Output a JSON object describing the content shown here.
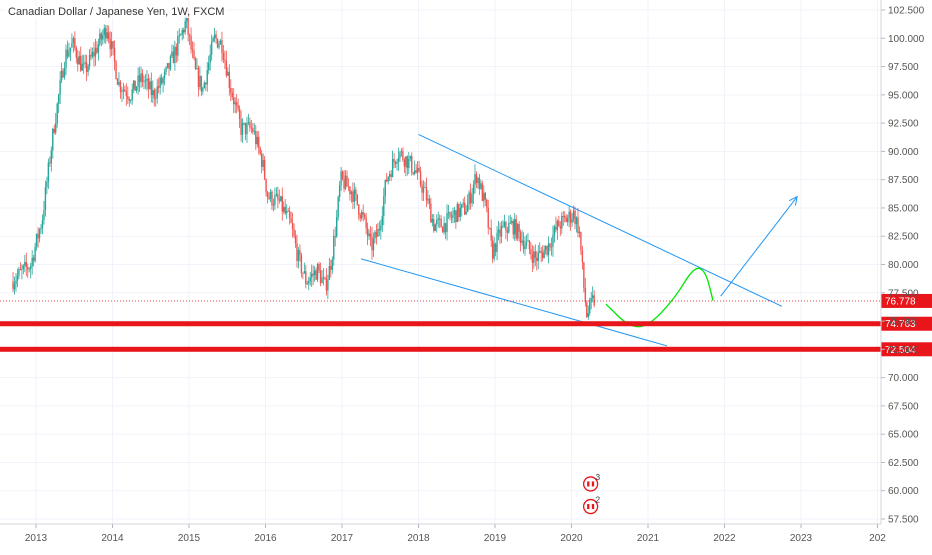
{
  "chart_data": {
    "type": "candlestick",
    "title": "Canadian Dollar / Japanese Yen, 1W, FXCM",
    "x_ticks": [
      "2013",
      "2014",
      "2015",
      "2016",
      "2017",
      "2018",
      "2019",
      "2020",
      "2021",
      "2022",
      "2023",
      "202"
    ],
    "y_ticks": [
      "102.500",
      "100.000",
      "97.500",
      "95.000",
      "92.500",
      "90.000",
      "87.500",
      "85.000",
      "82.500",
      "80.000",
      "77.500",
      "75.000",
      "72.500",
      "70.000",
      "67.500",
      "65.000",
      "62.500",
      "60.000",
      "57.500"
    ],
    "ylim": [
      57.5,
      102.5
    ],
    "xlim": [
      2012.7,
      2023.9
    ],
    "price_path": [
      [
        2012.7,
        78.5
      ],
      [
        2012.95,
        80.0
      ],
      [
        2013.1,
        84.0
      ],
      [
        2013.25,
        92.0
      ],
      [
        2013.4,
        98.5
      ],
      [
        2013.5,
        99.5
      ],
      [
        2013.65,
        97.0
      ],
      [
        2013.8,
        99.0
      ],
      [
        2013.95,
        101.0
      ],
      [
        2014.1,
        96.0
      ],
      [
        2014.25,
        95.0
      ],
      [
        2014.4,
        96.5
      ],
      [
        2014.55,
        95.0
      ],
      [
        2014.7,
        96.5
      ],
      [
        2014.85,
        99.0
      ],
      [
        2014.98,
        101.5
      ],
      [
        2015.1,
        97.0
      ],
      [
        2015.2,
        95.5
      ],
      [
        2015.35,
        100.0
      ],
      [
        2015.45,
        99.5
      ],
      [
        2015.55,
        96.0
      ],
      [
        2015.7,
        92.0
      ],
      [
        2015.85,
        92.0
      ],
      [
        2015.98,
        89.0
      ],
      [
        2016.05,
        86.0
      ],
      [
        2016.2,
        85.5
      ],
      [
        2016.35,
        83.5
      ],
      [
        2016.45,
        80.5
      ],
      [
        2016.55,
        78.5
      ],
      [
        2016.7,
        79.5
      ],
      [
        2016.8,
        78.0
      ],
      [
        2016.87,
        80.0
      ],
      [
        2016.95,
        84.0
      ],
      [
        2017.0,
        87.5
      ],
      [
        2017.15,
        86.5
      ],
      [
        2017.3,
        84.0
      ],
      [
        2017.4,
        81.5
      ],
      [
        2017.5,
        83.0
      ],
      [
        2017.6,
        87.5
      ],
      [
        2017.75,
        90.0
      ],
      [
        2017.9,
        89.0
      ],
      [
        2018.0,
        88.0
      ],
      [
        2018.12,
        86.0
      ],
      [
        2018.22,
        83.5
      ],
      [
        2018.35,
        83.5
      ],
      [
        2018.5,
        84.5
      ],
      [
        2018.65,
        85.0
      ],
      [
        2018.78,
        88.0
      ],
      [
        2018.9,
        85.0
      ],
      [
        2018.98,
        81.0
      ],
      [
        2019.1,
        83.0
      ],
      [
        2019.25,
        83.5
      ],
      [
        2019.4,
        82.0
      ],
      [
        2019.55,
        80.5
      ],
      [
        2019.7,
        81.5
      ],
      [
        2019.85,
        83.5
      ],
      [
        2019.95,
        84.0
      ],
      [
        2020.05,
        84.5
      ],
      [
        2020.12,
        83.0
      ],
      [
        2020.18,
        78.0
      ],
      [
        2020.22,
        75.5
      ],
      [
        2020.3,
        76.8
      ]
    ],
    "drawings": {
      "upper_trendline": [
        [
          2018.0,
          91.5
        ],
        [
          2022.75,
          76.3
        ]
      ],
      "lower_trendline": [
        [
          2017.25,
          80.5
        ],
        [
          2021.25,
          72.8
        ]
      ],
      "projection_curve": [
        [
          2020.45,
          76.5
        ],
        [
          2020.75,
          74.5
        ],
        [
          2021.0,
          74.5
        ],
        [
          2021.35,
          77.0
        ],
        [
          2021.6,
          79.8
        ],
        [
          2021.75,
          79.5
        ],
        [
          2021.85,
          76.8
        ]
      ],
      "arrow": [
        [
          2021.95,
          77.2
        ],
        [
          2022.95,
          86.0
        ]
      ]
    },
    "horizontal_levels": [
      {
        "label": "74.763",
        "value": 74.763,
        "color": "#e8151b"
      },
      {
        "label": "72.504",
        "value": 72.504,
        "color": "#e8151b"
      }
    ],
    "current_price": {
      "label": "76.778",
      "value": 76.778,
      "color": "#e8151b"
    },
    "events": [
      {
        "year": 2020.25,
        "value": 60.6,
        "count": "3"
      },
      {
        "year": 2020.25,
        "value": 58.6,
        "count": "2"
      }
    ],
    "colors": {
      "up": "#26a69a",
      "down": "#ef5350",
      "trendline": "#2196f3",
      "curve": "#00e600",
      "level": "#e8151b"
    }
  }
}
